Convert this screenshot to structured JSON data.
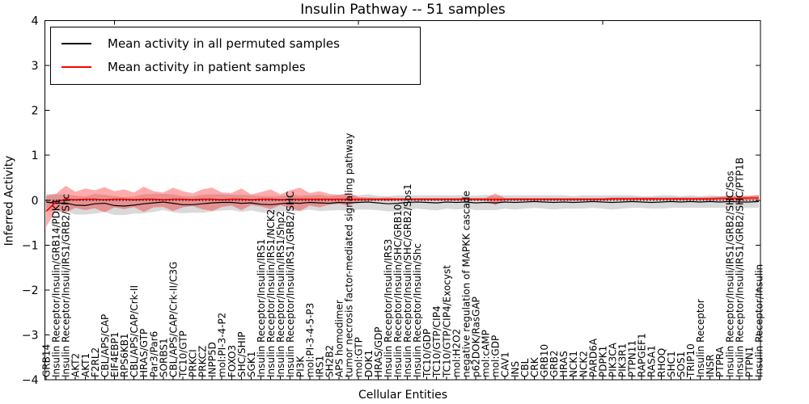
{
  "accent_colors": {
    "patient_red": "#ff0000",
    "permuted_black": "#000000",
    "gray_band": "rgba(0,0,0,0.15)",
    "red_band": "rgba(255,0,0,0.33)"
  },
  "chart_data": {
    "type": "line",
    "title": "Insulin Pathway -- 51 samples",
    "xlabel": "Cellular Entities",
    "ylabel": "Inferred Activity",
    "ylim": [
      -4,
      4
    ],
    "yticks": [
      4,
      3,
      2,
      1,
      0,
      -1,
      -2,
      -3,
      -4
    ],
    "grid": false,
    "legend_position": "upper left",
    "zero_line": {
      "value": 0,
      "style": "dotted",
      "color": "#000000"
    },
    "categories": [
      "GRB14",
      "Insulin Receptor/Insulin/GRB14/PDK1",
      "Insulin Receptor/Insuli/IRS1/GRB2/Shc",
      "AKT2",
      "AKT1",
      "F2RL2",
      "CBL/APS/CAP",
      "EIF4EBP1",
      "RPS6KB1",
      "CBL/APS/CAP/Crk-II",
      "HRAS/GTP",
      "Par3/Par6",
      "SORBS1",
      "CBL/APS/CAP/Crk-II/C3G",
      "TC10/GTP",
      "PRKCI",
      "PRKCZ",
      "INPP5D",
      "mol:PI-3-4-P2",
      "FOXO3",
      "SHC/SHIP",
      "SGK1",
      "Insulin Receptor/Insulin/IRS1",
      "Insulin Receptor/Insulin/IRS1/NCK2",
      "Insulin Receptor/Insulin/IRS1/Shp2",
      "Insulin Receptor/Insuli/IRS1/GRB2/SHC",
      "PI3K",
      "mol:PI-3-4-5-P3",
      "IRS1",
      "SH2B2",
      "APS homodimer",
      "tumor necrosis factor-mediated signaling pathway",
      "mol:GTP",
      "DOK1",
      "HRAS/GDP",
      "Insulin Receptor/Insulin/IRS3",
      "Insulin Receptor/Insulin/SHC/GRB10",
      "Insulin Receptor/Insulin/SHC/GRB2/Sos1",
      "Insulin Receptor/Insulin/Shc",
      "TC10/GDP",
      "TC10/GTP/CIP4",
      "TC10/GTP/CIP4/Exocyst",
      "mol:H2O2",
      "negative regulation of MAPKK cascade",
      "p62DOK/RasGAP",
      "mol:cAMP",
      "mol:GDP",
      "CAV1",
      "INS",
      "CBL",
      "CRK",
      "GRB10",
      "GRB2",
      "HRAS",
      "NCK1",
      "NCK2",
      "PARD6A",
      "PDPK1",
      "PIK3CA",
      "PIK3R1",
      "PTPN11",
      "RAPGEF1",
      "RASA1",
      "RHOQ",
      "SHC1",
      "SOS1",
      "TRIP10",
      "Insulin Receptor",
      "INSR",
      "PTPRA",
      "Insulin Receptor/Insuli/IRS1/GRB2/SHC/Sos",
      "Insulin Receptor/Insuli/IRS1/GRB2/SHC/PTP1B",
      "PTPN1",
      "Insulin Receptor/Insulin"
    ],
    "series": [
      {
        "name": "Mean activity in all permuted samples",
        "color": "#000000",
        "style": "solid",
        "values": [
          -0.04,
          -0.07,
          -0.06,
          -0.11,
          -0.12,
          -0.08,
          -0.07,
          -0.12,
          -0.13,
          -0.11,
          -0.08,
          -0.06,
          -0.04,
          -0.07,
          -0.1,
          -0.1,
          -0.08,
          -0.06,
          -0.05,
          -0.05,
          -0.07,
          -0.06,
          -0.09,
          -0.1,
          -0.08,
          -0.06,
          -0.07,
          -0.05,
          -0.06,
          -0.07,
          -0.05,
          -0.06,
          -0.05,
          -0.04,
          -0.06,
          -0.08,
          -0.07,
          -0.05,
          -0.04,
          -0.05,
          -0.06,
          -0.04,
          -0.05,
          -0.04,
          -0.06,
          -0.05,
          -0.06,
          -0.04,
          -0.05,
          -0.04,
          -0.03,
          -0.04,
          -0.05,
          -0.04,
          -0.05,
          -0.04,
          -0.03,
          -0.04,
          -0.05,
          -0.04,
          -0.03,
          -0.04,
          -0.05,
          -0.04,
          -0.03,
          -0.04,
          -0.03,
          -0.04,
          -0.03,
          -0.04,
          -0.03,
          -0.04,
          -0.04,
          -0.03
        ]
      },
      {
        "name": "Mean activity in patient samples",
        "color": "#ff0000",
        "style": "solid",
        "values": [
          -0.25,
          -0.04,
          0.02,
          0.01,
          0.02,
          0.02,
          0.01,
          0.02,
          0.02,
          0.01,
          0.02,
          0.02,
          0.01,
          0.02,
          0.02,
          0.01,
          0.02,
          0.02,
          0.01,
          0.02,
          0.02,
          0.01,
          0.02,
          0.02,
          0.01,
          0.02,
          0.02,
          0.02,
          0.02,
          0.02,
          0.02,
          0.02,
          0.02,
          0.02,
          0.02,
          0.02,
          0.02,
          0.02,
          0.02,
          0.02,
          0.02,
          0.02,
          0.02,
          0.02,
          0.02,
          0.02,
          0.02,
          0.02,
          0.02,
          0.02,
          0.02,
          0.02,
          0.02,
          0.02,
          0.02,
          0.02,
          0.02,
          0.02,
          0.03,
          0.03,
          0.03,
          0.03,
          0.03,
          0.03,
          0.03,
          0.03,
          0.03,
          0.03,
          0.03,
          0.04,
          0.04,
          0.04,
          0.05,
          0.05
        ]
      }
    ],
    "bands": [
      {
        "name": "permuted-samples-range",
        "series_ref": 0,
        "color": "rgba(0,0,0,0.15)",
        "half_widths": [
          0.18,
          0.2,
          0.19,
          0.21,
          0.2,
          0.22,
          0.19,
          0.21,
          0.2,
          0.19,
          0.21,
          0.2,
          0.18,
          0.2,
          0.19,
          0.18,
          0.2,
          0.19,
          0.18,
          0.17,
          0.19,
          0.17,
          0.18,
          0.19,
          0.17,
          0.18,
          0.17,
          0.16,
          0.18,
          0.16,
          0.17,
          0.18,
          0.16,
          0.17,
          0.16,
          0.17,
          0.18,
          0.16,
          0.15,
          0.16,
          0.17,
          0.15,
          0.16,
          0.15,
          0.16,
          0.17,
          0.16,
          0.15,
          0.16,
          0.15,
          0.14,
          0.15,
          0.16,
          0.15,
          0.14,
          0.15,
          0.14,
          0.15,
          0.16,
          0.15,
          0.14,
          0.13,
          0.14,
          0.15,
          0.14,
          0.13,
          0.14,
          0.13,
          0.14,
          0.13,
          0.14,
          0.13,
          0.13,
          0.14
        ]
      },
      {
        "name": "patient-samples-range",
        "series_ref": 1,
        "color": "rgba(255,0,0,0.33)",
        "half_widths": [
          0.35,
          0.18,
          0.3,
          0.18,
          0.24,
          0.2,
          0.28,
          0.18,
          0.22,
          0.16,
          0.28,
          0.18,
          0.16,
          0.26,
          0.18,
          0.14,
          0.22,
          0.26,
          0.16,
          0.14,
          0.24,
          0.12,
          0.16,
          0.22,
          0.12,
          0.2,
          0.26,
          0.14,
          0.18,
          0.12,
          0.1,
          0.14,
          0.05,
          0.04,
          0.03,
          0.04,
          0.03,
          0.03,
          0.03,
          0.03,
          0.03,
          0.03,
          0.03,
          0.03,
          0.03,
          0.03,
          0.13,
          0.03,
          0.03,
          0.03,
          0.03,
          0.03,
          0.03,
          0.03,
          0.03,
          0.03,
          0.03,
          0.03,
          0.03,
          0.03,
          0.03,
          0.03,
          0.03,
          0.03,
          0.03,
          0.03,
          0.03,
          0.03,
          0.04,
          0.04,
          0.05,
          0.06,
          0.05,
          0.07
        ]
      }
    ]
  }
}
